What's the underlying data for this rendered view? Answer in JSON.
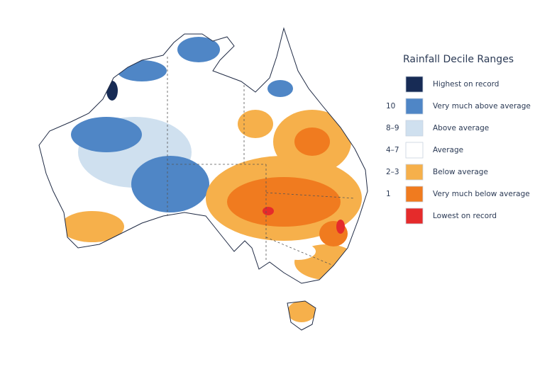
{
  "legend": {
    "title": "Rainfall Decile Ranges",
    "items": [
      {
        "label": "Highest on record",
        "color": "#172b55"
      },
      {
        "decile": "10",
        "label": "Very much above average",
        "color": "#4f86c6"
      },
      {
        "decile": "8–9",
        "label": "Above average",
        "color": "#cfe0ef"
      },
      {
        "decile": "4–7",
        "label": "Average",
        "color": "#ffffff"
      },
      {
        "decile": "2–3",
        "label": "Below average",
        "color": "#f6b04b"
      },
      {
        "decile": "1",
        "label": "Very much below average",
        "color": "#f07b1f"
      },
      {
        "label": "Lowest on record",
        "color": "#e52b2b"
      }
    ]
  }
}
